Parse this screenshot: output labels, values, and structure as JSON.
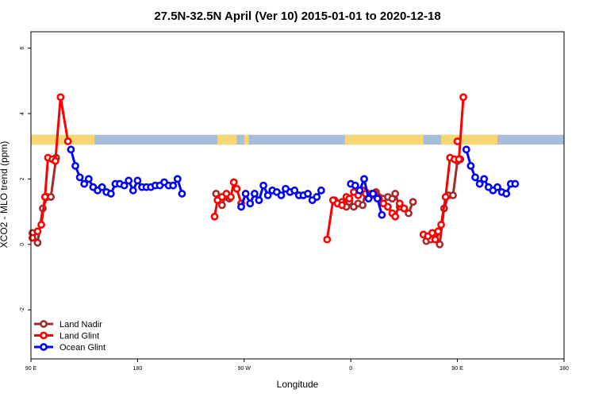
{
  "chart_data": {
    "type": "line",
    "title": "27.5N-32.5N April (Ver 10)   2015-01-01 to 2020-12-18",
    "xlabel": "Longitude",
    "ylabel": "XCO2 - MLO trend (ppm)",
    "xlim": [
      90,
      450
    ],
    "ylim": [
      -3.5,
      6.5
    ],
    "x_ticks": [
      {
        "value": 90,
        "label": "90 E"
      },
      {
        "value": 162,
        "label": "180"
      },
      {
        "value": 234,
        "label": "90 W"
      },
      {
        "value": 306,
        "label": "0"
      },
      {
        "value": 378,
        "label": "90 E"
      },
      {
        "value": 450,
        "label": "180"
      }
    ],
    "y_ticks": [
      {
        "value": -2,
        "label": "-2"
      },
      {
        "value": 0,
        "label": "0"
      },
      {
        "value": 2,
        "label": "2"
      },
      {
        "value": 4,
        "label": "4"
      },
      {
        "value": 6,
        "label": "6"
      }
    ],
    "grid": false,
    "legend_position": "bottom-left",
    "map_strip": {
      "y_range": [
        3.05,
        3.35
      ],
      "ocean_color": "#a6bddb",
      "land_color": "#f7d774",
      "land_x": [
        [
          90,
          133
        ],
        [
          216,
          229
        ],
        [
          234,
          237
        ],
        [
          302,
          355
        ],
        [
          367,
          405
        ]
      ]
    },
    "series": [
      {
        "name": "Land Nadir",
        "color": "#a52a2a",
        "segments": [
          [
            [
              91,
              0.35
            ],
            [
              94.5,
              0.05
            ],
            [
              98,
              1.1
            ],
            [
              101,
              1.45
            ],
            [
              103.5,
              1.45
            ],
            [
              107,
              2.65
            ]
          ],
          [
            [
              215,
              1.55
            ],
            [
              219,
              1.2
            ],
            [
              221,
              1.45
            ],
            [
              224,
              1.4
            ]
          ],
          [
            [
              295,
              1.35
            ],
            [
              297,
              1.25
            ],
            [
              300,
              1.3
            ],
            [
              303,
              1.15
            ],
            [
              305,
              1.3
            ],
            [
              308,
              1.15
            ],
            [
              311,
              1.25
            ],
            [
              314,
              1.2
            ],
            [
              316,
              1.6
            ],
            [
              318,
              1.5
            ],
            [
              320,
              1.55
            ],
            [
              323,
              1.6
            ],
            [
              325,
              1.45
            ],
            [
              328,
              1.4
            ],
            [
              331,
              1.45
            ],
            [
              334,
              1.4
            ],
            [
              336,
              1.55
            ],
            [
              339,
              1.15
            ],
            [
              342,
              1.1
            ],
            [
              345,
              0.95
            ],
            [
              348,
              1.3
            ]
          ],
          [
            [
              357,
              0.1
            ],
            [
              360,
              0.15
            ],
            [
              363,
              0.3
            ],
            [
              366,
              0.0
            ],
            [
              369,
              1.1
            ],
            [
              372,
              1.5
            ],
            [
              375,
              1.5
            ],
            [
              378,
              2.55
            ],
            [
              380,
              2.6
            ]
          ]
        ]
      },
      {
        "name": "Land Glint",
        "color": "#ff0000",
        "segments": [
          [
            [
              91,
              0.2
            ],
            [
              94.5,
              0.4
            ],
            [
              97,
              0.6
            ],
            [
              99.5,
              1.45
            ],
            [
              101.5,
              2.65
            ],
            [
              104.5,
              2.6
            ],
            [
              106.5,
              2.55
            ],
            [
              110,
              4.5
            ],
            [
              115,
              3.15
            ]
          ],
          [
            [
              214,
              0.85
            ],
            [
              216,
              1.35
            ],
            [
              219,
              1.45
            ],
            [
              222,
              1.55
            ],
            [
              225,
              1.45
            ],
            [
              227,
              1.9
            ],
            [
              229,
              1.7
            ],
            [
              232,
              1.25
            ]
          ],
          [
            [
              290,
              0.15
            ],
            [
              294,
              1.35
            ],
            [
              297,
              1.25
            ],
            [
              300,
              1.2
            ],
            [
              303,
              1.45
            ],
            [
              305,
              1.4
            ],
            [
              308,
              1.6
            ],
            [
              311,
              1.5
            ],
            [
              314,
              1.65
            ],
            [
              316,
              1.55
            ],
            [
              320,
              1.5
            ],
            [
              322,
              1.55
            ],
            [
              325,
              1.4
            ],
            [
              328,
              1.25
            ],
            [
              331,
              1.15
            ],
            [
              334,
              0.95
            ],
            [
              336,
              0.85
            ],
            [
              339,
              1.25
            ],
            [
              342,
              1.1
            ]
          ],
          [
            [
              355,
              0.3
            ],
            [
              358,
              0.25
            ],
            [
              361,
              0.35
            ],
            [
              363,
              0.15
            ],
            [
              365,
              0.4
            ],
            [
              367,
              0.6
            ],
            [
              370,
              1.45
            ],
            [
              373,
              2.65
            ],
            [
              376,
              2.6
            ],
            [
              379,
              2.6
            ],
            [
              382,
              4.5
            ]
          ],
          [
            [
              378,
              3.15
            ]
          ]
        ]
      },
      {
        "name": "Ocean Glint",
        "color": "#0000ff",
        "segments": [
          [
            [
              117,
              2.9
            ],
            [
              120,
              2.4
            ],
            [
              123,
              2.05
            ],
            [
              126,
              1.85
            ],
            [
              129,
              2.0
            ],
            [
              132,
              1.75
            ],
            [
              135,
              1.65
            ],
            [
              138,
              1.75
            ],
            [
              141,
              1.6
            ],
            [
              144,
              1.55
            ],
            [
              147,
              1.85
            ],
            [
              150,
              1.85
            ],
            [
              153,
              1.8
            ],
            [
              156,
              1.95
            ],
            [
              159,
              1.65
            ],
            [
              162,
              1.95
            ],
            [
              165,
              1.75
            ],
            [
              168,
              1.75
            ],
            [
              171,
              1.75
            ],
            [
              174,
              1.8
            ],
            [
              177,
              1.8
            ],
            [
              180,
              1.9
            ],
            [
              183,
              1.8
            ],
            [
              186,
              1.8
            ],
            [
              189,
              2.0
            ],
            [
              192,
              1.55
            ]
          ],
          [
            [
              232,
              1.15
            ],
            [
              235,
              1.55
            ],
            [
              238,
              1.25
            ],
            [
              241,
              1.55
            ],
            [
              244,
              1.35
            ],
            [
              247,
              1.8
            ],
            [
              250,
              1.5
            ],
            [
              253,
              1.65
            ],
            [
              256,
              1.6
            ],
            [
              259,
              1.5
            ],
            [
              262,
              1.7
            ],
            [
              265,
              1.6
            ],
            [
              268,
              1.65
            ],
            [
              271,
              1.5
            ],
            [
              274,
              1.5
            ],
            [
              277,
              1.55
            ],
            [
              280,
              1.35
            ],
            [
              283,
              1.45
            ],
            [
              286,
              1.65
            ]
          ],
          [
            [
              306,
              1.85
            ],
            [
              309,
              1.8
            ],
            [
              312,
              1.65
            ],
            [
              315,
              2.0
            ],
            [
              318,
              1.4
            ],
            [
              321,
              1.55
            ],
            [
              324,
              1.4
            ],
            [
              327,
              0.9
            ]
          ],
          [
            [
              384,
              2.9
            ],
            [
              387,
              2.4
            ],
            [
              390,
              2.05
            ],
            [
              393,
              1.85
            ],
            [
              396,
              2.0
            ],
            [
              399,
              1.75
            ],
            [
              402,
              1.65
            ],
            [
              405,
              1.75
            ],
            [
              408,
              1.6
            ],
            [
              411,
              1.55
            ],
            [
              414,
              1.85
            ],
            [
              417,
              1.85
            ]
          ]
        ]
      }
    ]
  }
}
